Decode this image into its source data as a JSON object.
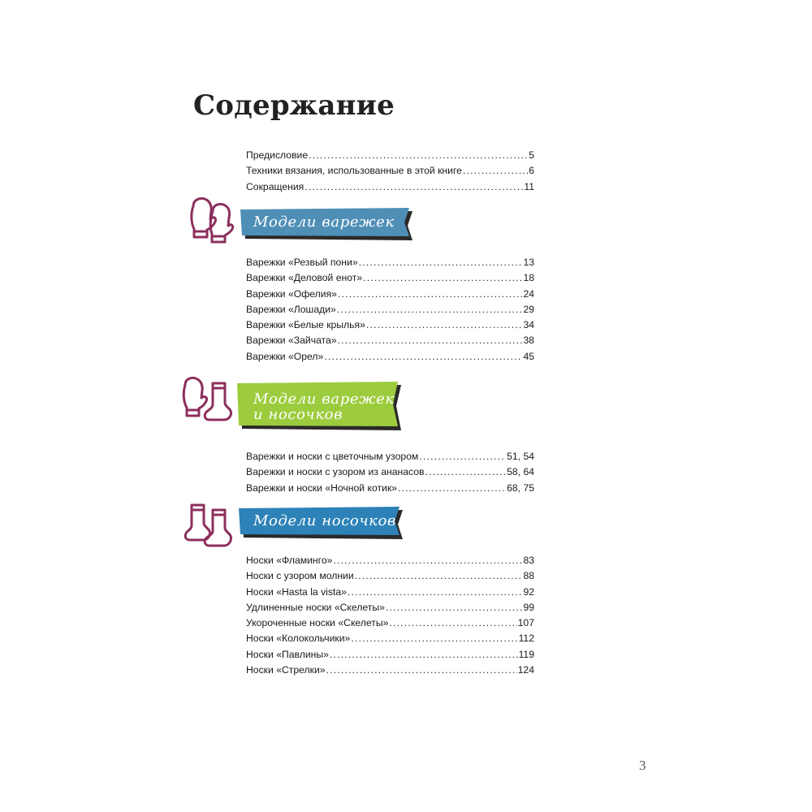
{
  "title": "Содержание",
  "intro": [
    {
      "title": "Предисловие",
      "page": "5"
    },
    {
      "title": "Техники вязания, использованные в этой книге",
      "page": "6"
    },
    {
      "title": "Сокращения",
      "page": "11"
    }
  ],
  "sections": [
    {
      "banner_text": "Модели варежек",
      "banner_color": "#4f8fb6",
      "icon": "mittens-icon",
      "items": [
        {
          "title": "Варежки «Резвый пони»",
          "page": "13"
        },
        {
          "title": "Варежки «Деловой енот»",
          "page": "18"
        },
        {
          "title": "Варежки «Офелия»",
          "page": "24"
        },
        {
          "title": "Варежки «Лошади»",
          "page": "29"
        },
        {
          "title": "Варежки «Белые крылья»",
          "page": "34"
        },
        {
          "title": "Варежки «Зайчата»",
          "page": "38"
        },
        {
          "title": "Варежки «Орел»",
          "page": "45"
        }
      ]
    },
    {
      "banner_text_line1": "Модели варежек",
      "banner_text_line2": "и носочков",
      "banner_color": "#9ccc3d",
      "icon": "mitten-and-sock-icon",
      "items": [
        {
          "title": "Варежки и носки с цветочным узором",
          "page": "51, 54"
        },
        {
          "title": "Варежки и носки с узором из ананасов",
          "page": "58, 64"
        },
        {
          "title": "Варежки и носки «Ночной котик»",
          "page": "68, 75"
        }
      ]
    },
    {
      "banner_text": "Модели носочков",
      "banner_color": "#2d82b7",
      "icon": "socks-icon",
      "items": [
        {
          "title": "Носки «Фламинго»",
          "page": "83"
        },
        {
          "title": "Носки с узором молнии",
          "page": "88"
        },
        {
          "title": "Носки «Hasta la vista»",
          "page": "92"
        },
        {
          "title": "Удлиненные носки «Скелеты»",
          "page": "99"
        },
        {
          "title": "Укороченные носки «Скелеты»",
          "page": "107"
        },
        {
          "title": "Носки «Колокольчики»",
          "page": "112"
        },
        {
          "title": "Носки «Павлины»",
          "page": "119"
        },
        {
          "title": "Носки «Стрелки»",
          "page": "124"
        }
      ]
    }
  ],
  "colors": {
    "icon_stroke": "#8c2f5c",
    "banner_shadow": "#2a2a2a"
  },
  "page_number": "3"
}
